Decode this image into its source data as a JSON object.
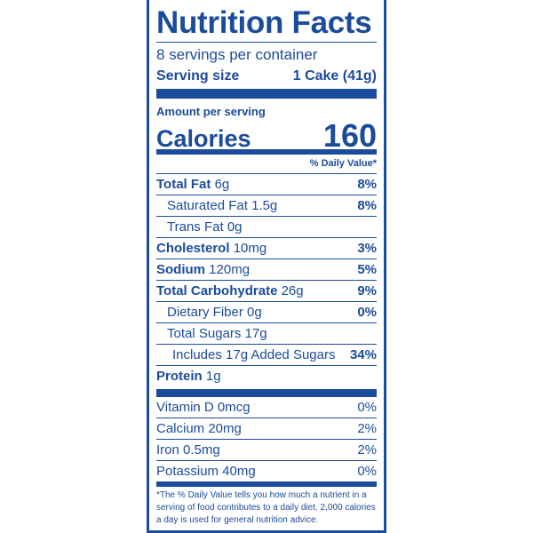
{
  "title": "Nutrition Facts",
  "servings": "8 servings per container",
  "serving_size": {
    "label": "Serving size",
    "value": "1 Cake (41g)"
  },
  "amount_per_serving": "Amount per serving",
  "calories": {
    "label": "Calories",
    "value": "160"
  },
  "dv_header": "% Daily Value*",
  "nutrients": [
    {
      "name": "Total Fat",
      "amount": "6g",
      "dv": "8%"
    },
    {
      "name": "Saturated Fat",
      "amount": "1.5g",
      "dv": "8%"
    },
    {
      "name": "Trans Fat",
      "amount": "0g",
      "dv": ""
    },
    {
      "name": "Cholesterol",
      "amount": "10mg",
      "dv": "3%"
    },
    {
      "name": "Sodium",
      "amount": "120mg",
      "dv": "5%"
    },
    {
      "name": "Total Carbohydrate",
      "amount": "26g",
      "dv": "9%"
    },
    {
      "name": "Dietary Fiber",
      "amount": "0g",
      "dv": "0%"
    },
    {
      "name": "Total Sugars",
      "amount": "17g",
      "dv": ""
    },
    {
      "name": "Includes 17g Added Sugars",
      "amount": "",
      "dv": "34%"
    },
    {
      "name": "Protein",
      "amount": "1g",
      "dv": ""
    }
  ],
  "vitamins": [
    {
      "name": "Vitamin D 0mcg",
      "dv": "0%"
    },
    {
      "name": "Calcium 20mg",
      "dv": "2%"
    },
    {
      "name": "Iron 0.5mg",
      "dv": "2%"
    },
    {
      "name": "Potassium 40mg",
      "dv": "0%"
    }
  ],
  "footnote": "*The % Daily Value tells you how much a nutrient in a serving of food contributes to a daily diet. 2,000 calories a day is used for general nutrition advice.",
  "colors": {
    "ink": "#1b4b9b"
  }
}
